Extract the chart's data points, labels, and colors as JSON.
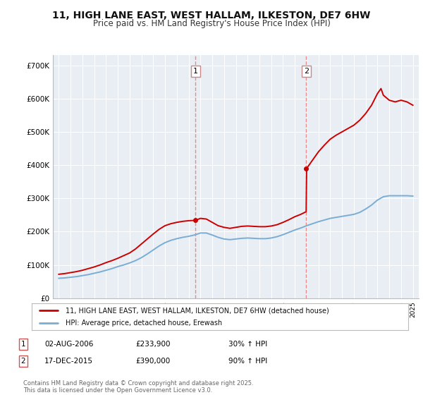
{
  "title": "11, HIGH LANE EAST, WEST HALLAM, ILKESTON, DE7 6HW",
  "subtitle": "Price paid vs. HM Land Registry's House Price Index (HPI)",
  "legend_line1": "11, HIGH LANE EAST, WEST HALLAM, ILKESTON, DE7 6HW (detached house)",
  "legend_line2": "HPI: Average price, detached house, Erewash",
  "annotation1_label": "1",
  "annotation1_date": "02-AUG-2006",
  "annotation1_price": "£233,900",
  "annotation1_hpi": "30% ↑ HPI",
  "annotation2_label": "2",
  "annotation2_date": "17-DEC-2015",
  "annotation2_price": "£390,000",
  "annotation2_hpi": "90% ↑ HPI",
  "footer": "Contains HM Land Registry data © Crown copyright and database right 2025.\nThis data is licensed under the Open Government Licence v3.0.",
  "sale1_x": 2006.58,
  "sale1_y": 233900,
  "sale2_x": 2015.96,
  "sale2_y": 390000,
  "red_color": "#cc0000",
  "blue_color": "#7aadd4",
  "dashed_color": "#ee8888",
  "background_color": "#e8eef4",
  "grid_color": "#ffffff",
  "ylim_min": 0,
  "ylim_max": 730000,
  "xlim_min": 1994.5,
  "xlim_max": 2025.5,
  "hpi_years": [
    1995,
    1995.5,
    1996,
    1996.5,
    1997,
    1997.5,
    1998,
    1998.5,
    1999,
    1999.5,
    2000,
    2000.5,
    2001,
    2001.5,
    2002,
    2002.5,
    2003,
    2003.5,
    2004,
    2004.5,
    2005,
    2005.5,
    2006,
    2006.5,
    2007,
    2007.5,
    2008,
    2008.5,
    2009,
    2009.5,
    2010,
    2010.5,
    2011,
    2011.5,
    2012,
    2012.5,
    2013,
    2013.5,
    2014,
    2014.5,
    2015,
    2015.5,
    2016,
    2016.5,
    2017,
    2017.5,
    2018,
    2018.5,
    2019,
    2019.5,
    2020,
    2020.5,
    2021,
    2021.5,
    2022,
    2022.5,
    2023,
    2023.5,
    2024,
    2024.5,
    2025
  ],
  "hpi_values": [
    60000,
    61000,
    63000,
    65000,
    68000,
    71000,
    75000,
    79000,
    84000,
    89000,
    95000,
    100000,
    106000,
    113000,
    122000,
    133000,
    145000,
    157000,
    167000,
    174000,
    179000,
    183000,
    186000,
    190000,
    196000,
    196000,
    190000,
    183000,
    178000,
    176000,
    178000,
    180000,
    181000,
    180000,
    179000,
    179000,
    181000,
    185000,
    191000,
    198000,
    205000,
    211000,
    218000,
    224000,
    230000,
    235000,
    240000,
    243000,
    246000,
    249000,
    252000,
    258000,
    268000,
    280000,
    295000,
    305000,
    308000,
    308000,
    308000,
    308000,
    307000
  ],
  "red_years": [
    1995,
    1995.5,
    1996,
    1996.5,
    1997,
    1997.5,
    1998,
    1998.5,
    1999,
    1999.5,
    2000,
    2000.5,
    2001,
    2001.5,
    2002,
    2002.5,
    2003,
    2003.5,
    2004,
    2004.5,
    2005,
    2005.5,
    2006,
    2006.58,
    2007,
    2007.5,
    2008,
    2008.5,
    2009,
    2009.5,
    2010,
    2010.5,
    2011,
    2011.5,
    2012,
    2012.5,
    2013,
    2013.5,
    2014,
    2014.5,
    2015,
    2015.5,
    2015.96,
    2016,
    2016.5,
    2017,
    2017.5,
    2018,
    2018.5,
    2019,
    2019.5,
    2020,
    2020.5,
    2021,
    2021.5,
    2022,
    2022.3,
    2022.5,
    2023,
    2023.5,
    2024,
    2024.5,
    2025
  ],
  "red_values": [
    72000,
    74000,
    77000,
    80000,
    84000,
    89000,
    94000,
    100000,
    107000,
    113000,
    120000,
    128000,
    136000,
    148000,
    163000,
    178000,
    193000,
    207000,
    218000,
    224000,
    228000,
    231000,
    233000,
    233900,
    240000,
    238000,
    228000,
    218000,
    213000,
    210000,
    213000,
    216000,
    217000,
    216000,
    215000,
    215000,
    217000,
    221000,
    228000,
    236000,
    245000,
    252000,
    260000,
    390000,
    415000,
    440000,
    460000,
    478000,
    490000,
    500000,
    510000,
    520000,
    535000,
    555000,
    580000,
    615000,
    630000,
    610000,
    595000,
    590000,
    595000,
    590000,
    580000
  ],
  "yticks": [
    0,
    100000,
    200000,
    300000,
    400000,
    500000,
    600000,
    700000
  ],
  "ytick_labels": [
    "£0",
    "£100K",
    "£200K",
    "£300K",
    "£400K",
    "£500K",
    "£600K",
    "£700K"
  ]
}
